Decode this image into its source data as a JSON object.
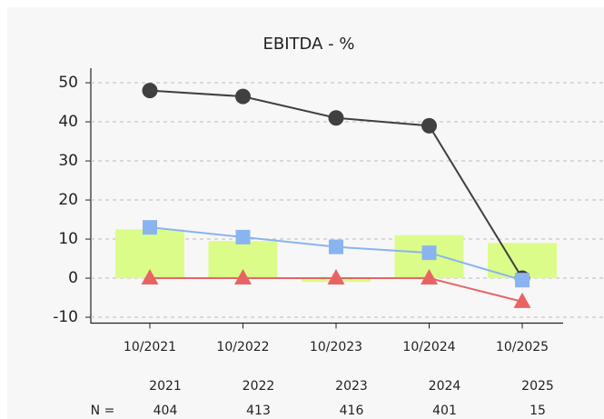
{
  "chart_data": {
    "type": "bar",
    "title": "EBITDA - %",
    "categories": [
      "10/2021",
      "10/2022",
      "10/2023",
      "10/2024",
      "10/2025"
    ],
    "series": [
      {
        "type": "bar",
        "color": "#dcfc8a",
        "values": [
          12.5,
          9.5,
          -1,
          11,
          9
        ]
      },
      {
        "type": "line",
        "marker": "circle",
        "color": "#404040",
        "values": [
          48,
          46.5,
          41,
          39,
          0
        ]
      },
      {
        "type": "line",
        "marker": "square",
        "color": "#8ab4f0",
        "values": [
          13,
          10.5,
          8,
          6.5,
          -0.5
        ]
      },
      {
        "type": "line",
        "marker": "triangle",
        "color": "#e86464",
        "values": [
          0,
          0,
          0,
          0,
          -6
        ]
      }
    ],
    "ylim": [
      -11.5,
      53.5
    ],
    "yticks": [
      {
        "value": -10,
        "label": "-10"
      },
      0,
      10,
      20,
      30,
      40,
      50
    ],
    "grid": true,
    "footer": {
      "years": [
        "2021",
        "2022",
        "2023",
        "2024",
        "2025"
      ],
      "n_label": "N =",
      "n_values": [
        404,
        413,
        416,
        401,
        15
      ]
    }
  }
}
